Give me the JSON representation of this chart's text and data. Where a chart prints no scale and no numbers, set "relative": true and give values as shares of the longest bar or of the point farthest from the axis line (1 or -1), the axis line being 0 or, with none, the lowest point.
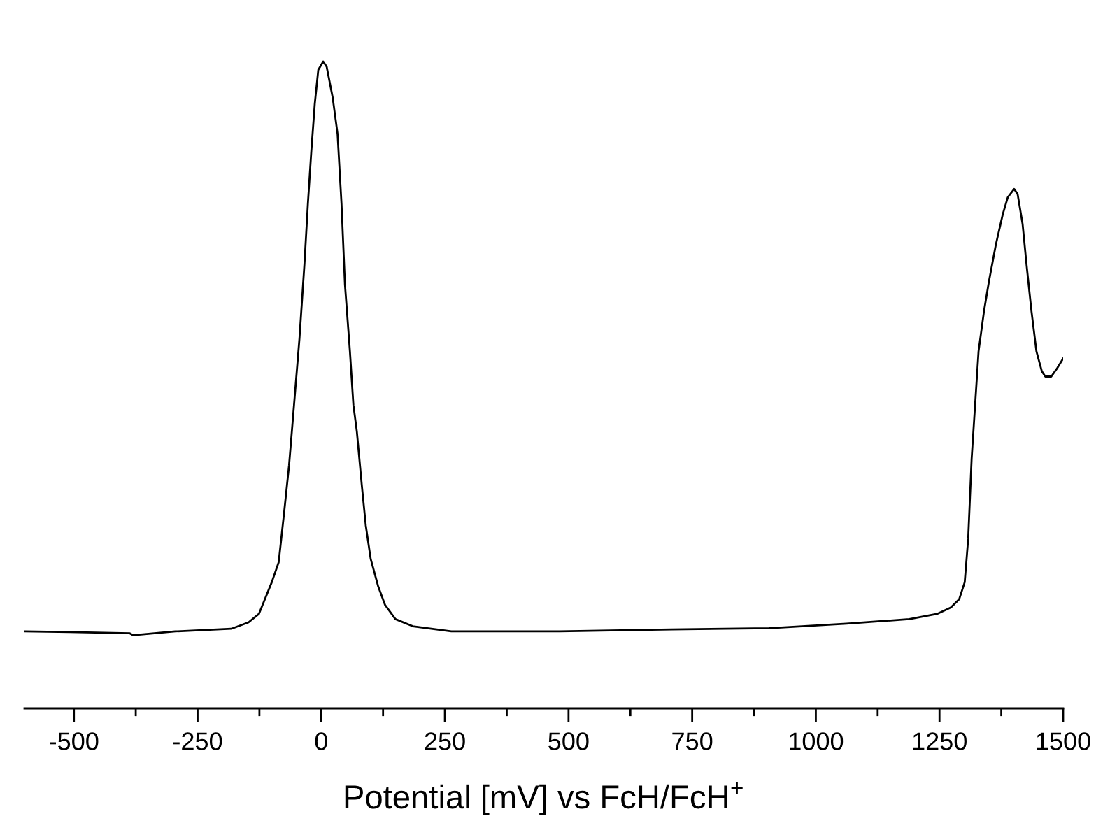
{
  "chart_data": {
    "type": "line",
    "relative": true,
    "xlabel": "Potential [mV] vs FcH/FcH$^{+}$",
    "xlim": [
      -600,
      1500
    ],
    "xticks": [
      -500,
      {
        "value": -375,
        "label": null
      },
      -250,
      {
        "value": -125,
        "label": null
      },
      0,
      {
        "value": 125,
        "label": null
      },
      250,
      {
        "value": 375,
        "label": null
      },
      500,
      {
        "value": 625,
        "label": null
      },
      750,
      {
        "value": 875,
        "label": null
      },
      1000,
      {
        "value": 1125,
        "label": null
      },
      1250,
      {
        "value": 1375,
        "label": null
      },
      1500
    ],
    "tick_labels": "x",
    "grid": false,
    "marker": "none",
    "line_style": "solid",
    "series": [
      {
        "color": "#000000",
        "x": [
          -600,
          -508,
          -387,
          -380,
          -295,
          -182,
          -147,
          -126,
          -100,
          -86,
          -75,
          -65,
          -55,
          -44,
          -34,
          -27,
          -20,
          -13,
          -6,
          4,
          11,
          23,
          33,
          41,
          48,
          58,
          65,
          72,
          82,
          90,
          100,
          115,
          129,
          150,
          185,
          263,
          482,
          708,
          906,
          1062,
          1189,
          1245,
          1273,
          1290,
          1301,
          1308,
          1315,
          1322,
          1329,
          1340,
          1350,
          1364,
          1378,
          1388,
          1401,
          1408,
          1418,
          1426,
          1436,
          1446,
          1457,
          1464,
          1476,
          1488,
          1500
        ],
        "values": [
          0.119,
          0.118,
          0.116,
          0.113,
          0.119,
          0.123,
          0.133,
          0.146,
          0.195,
          0.226,
          0.303,
          0.376,
          0.469,
          0.572,
          0.686,
          0.78,
          0.862,
          0.935,
          0.987,
          1.0,
          0.992,
          0.945,
          0.888,
          0.78,
          0.655,
          0.552,
          0.469,
          0.428,
          0.345,
          0.283,
          0.231,
          0.189,
          0.16,
          0.138,
          0.127,
          0.119,
          0.119,
          0.122,
          0.124,
          0.131,
          0.138,
          0.146,
          0.156,
          0.169,
          0.195,
          0.262,
          0.386,
          0.469,
          0.552,
          0.614,
          0.66,
          0.717,
          0.764,
          0.79,
          0.803,
          0.795,
          0.749,
          0.686,
          0.614,
          0.552,
          0.521,
          0.513,
          0.513,
          0.526,
          0.541
        ]
      }
    ]
  }
}
